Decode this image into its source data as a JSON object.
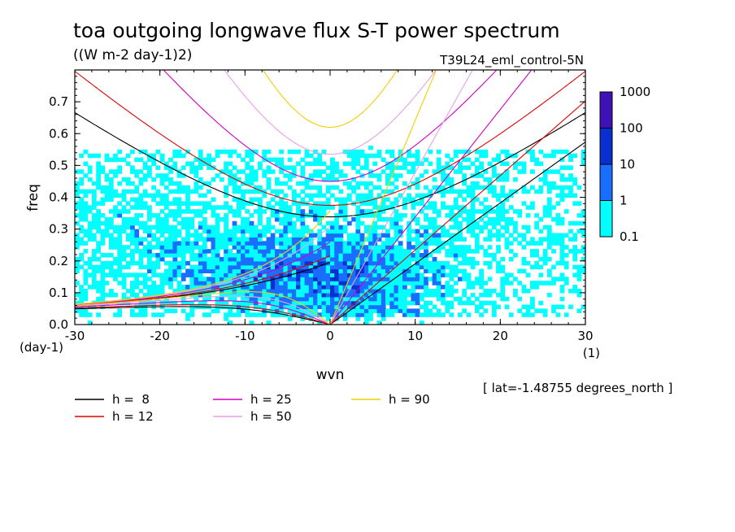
{
  "chart_data": {
    "type": "heatmap",
    "title": "toa outgoing longwave flux S-T power spectrum",
    "units": "((W m-2 day-1)2)",
    "experiment": "T39L24_eml_control-5N",
    "xlabel": "wvn",
    "ylabel": "freq",
    "x_unit": "(1)",
    "y_unit": "(day-1)",
    "xlim": [
      -30,
      30
    ],
    "ylim": [
      0.0,
      0.8
    ],
    "x_ticks": [
      -30,
      -20,
      -10,
      0,
      10,
      20,
      30
    ],
    "x_tick_labels": [
      "-30",
      "-20",
      "-10",
      "0",
      "10",
      "20",
      "30"
    ],
    "y_ticks": [
      0.0,
      0.1,
      0.2,
      0.3,
      0.4,
      0.5,
      0.6,
      0.7
    ],
    "y_tick_labels": [
      "0.0",
      "0.1",
      "0.2",
      "0.3",
      "0.4",
      "0.5",
      "0.6",
      "0.7"
    ],
    "colorbar": {
      "levels": [
        "0.1",
        "1",
        "10",
        "100",
        "1000"
      ],
      "colors": [
        "#00ffff",
        "#1a6eff",
        "#0a2fd0",
        "#3f12b8"
      ]
    },
    "annotation": "[ lat=-1.48755 degrees_north ]",
    "dispersion_curves": [
      {
        "name": "h =  8",
        "h": 8,
        "color": "#000000"
      },
      {
        "name": "h = 12",
        "h": 12,
        "color": "#e00000"
      },
      {
        "name": "h = 25",
        "h": 25,
        "color": "#d000c0"
      },
      {
        "name": "h = 50",
        "h": 50,
        "color": "#e8a0e8"
      },
      {
        "name": "h = 90",
        "h": 90,
        "color": "#f0d000"
      }
    ],
    "grid": false
  }
}
